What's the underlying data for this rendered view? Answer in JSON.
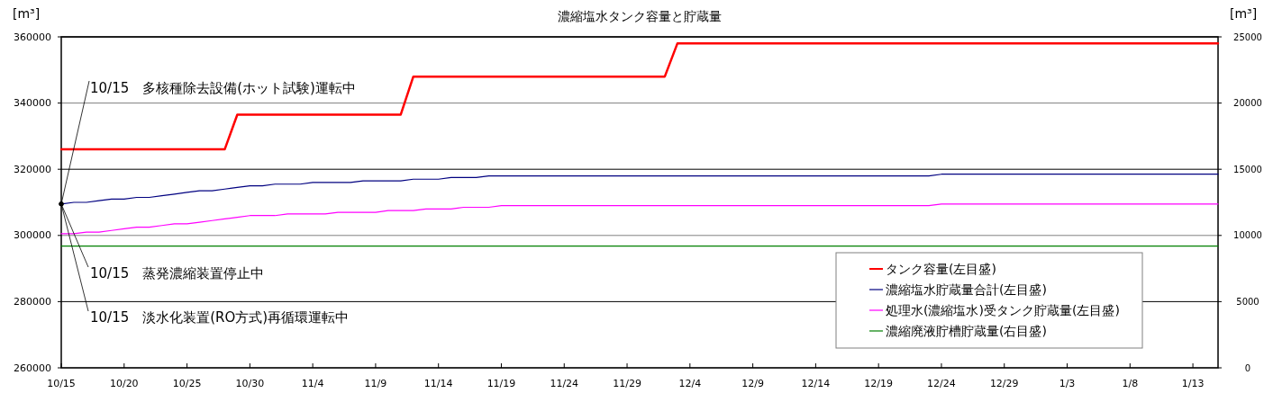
{
  "chart_data": {
    "type": "line",
    "title": "濃縮塩水タンク容量と貯蔵量",
    "ylabel": "[m³]",
    "y2label": "[m³]",
    "categories": [
      "10/15",
      null,
      null,
      null,
      null,
      "10/20",
      null,
      null,
      null,
      null,
      "10/25",
      null,
      null,
      null,
      null,
      "10/30",
      null,
      null,
      null,
      null,
      "11/4",
      null,
      null,
      null,
      null,
      "11/9",
      null,
      null,
      null,
      null,
      "11/14",
      null,
      null,
      null,
      null,
      "11/19",
      null,
      null,
      null,
      null,
      "11/24",
      null,
      null,
      null,
      null,
      "11/29",
      null,
      null,
      null,
      null,
      "12/4",
      null,
      null,
      null,
      null,
      "12/9",
      null,
      null,
      null,
      null,
      "12/14",
      null,
      null,
      null,
      null,
      "12/19",
      null,
      null,
      null,
      null,
      "12/24",
      null,
      null,
      null,
      null,
      "12/29",
      null,
      null,
      null,
      null,
      "1/3",
      null,
      null,
      null,
      null,
      "1/8",
      null,
      null,
      null,
      null,
      "1/13",
      null,
      null
    ],
    "ylim": [
      260000,
      360000
    ],
    "yticks": [
      260000,
      280000,
      300000,
      320000,
      340000,
      360000
    ],
    "y2lim": [
      0,
      25000
    ],
    "y2ticks": [
      0,
      5000,
      10000,
      15000,
      20000,
      25000
    ],
    "grid": "y",
    "legend": "bottom right",
    "series": [
      {
        "name": "タンク容量(左目盛)",
        "color": "#ff0000",
        "values": [
          326000,
          326000,
          326000,
          326000,
          326000,
          326000,
          326000,
          326000,
          326000,
          326000,
          326000,
          326000,
          326000,
          326000,
          336500,
          336500,
          336500,
          336500,
          336500,
          336500,
          336500,
          336500,
          336500,
          336500,
          336500,
          336500,
          336500,
          336500,
          348000,
          348000,
          348000,
          348000,
          348000,
          348000,
          348000,
          348000,
          348000,
          348000,
          348000,
          348000,
          348000,
          348000,
          348000,
          348000,
          348000,
          348000,
          348000,
          348000,
          348000,
          358000,
          358000,
          358000,
          358000,
          358000,
          358000,
          358000,
          358000,
          358000,
          358000,
          358000,
          358000,
          358000,
          358000,
          358000,
          358000,
          358000,
          358000,
          358000,
          358000,
          358000,
          358000,
          358000,
          358000,
          358000,
          358000,
          358000,
          358000,
          358000,
          358000,
          358000,
          358000,
          358000,
          358000,
          358000,
          358000,
          358000,
          358000,
          358000,
          358000,
          358000,
          358000,
          358000,
          358000
        ]
      },
      {
        "name": "濃縮塩水貯蔵量合計(左目盛)",
        "color": "#000080",
        "values": [
          309500,
          310000,
          310000,
          310500,
          311000,
          311000,
          311500,
          311500,
          312000,
          312500,
          313000,
          313500,
          313500,
          314000,
          314500,
          315000,
          315000,
          315500,
          315500,
          315500,
          316000,
          316000,
          316000,
          316000,
          316500,
          316500,
          316500,
          316500,
          317000,
          317000,
          317000,
          317500,
          317500,
          317500,
          318000,
          318000,
          318000,
          318000,
          318000,
          318000,
          318000,
          318000,
          318000,
          318000,
          318000,
          318000,
          318000,
          318000,
          318000,
          318000,
          318000,
          318000,
          318000,
          318000,
          318000,
          318000,
          318000,
          318000,
          318000,
          318000,
          318000,
          318000,
          318000,
          318000,
          318000,
          318000,
          318000,
          318000,
          318000,
          318000,
          318500,
          318500,
          318500,
          318500,
          318500,
          318500,
          318500,
          318500,
          318500,
          318500,
          318500,
          318500,
          318500,
          318500,
          318500,
          318500,
          318500,
          318500,
          318500,
          318500,
          318500,
          318500,
          318500
        ]
      },
      {
        "name": "処理水(濃縮塩水)受タンク貯蔵量(左目盛)",
        "color": "#ff00ff",
        "values": [
          300500,
          300500,
          301000,
          301000,
          301500,
          302000,
          302500,
          302500,
          303000,
          303500,
          303500,
          304000,
          304500,
          305000,
          305500,
          306000,
          306000,
          306000,
          306500,
          306500,
          306500,
          306500,
          307000,
          307000,
          307000,
          307000,
          307500,
          307500,
          307500,
          308000,
          308000,
          308000,
          308500,
          308500,
          308500,
          309000,
          309000,
          309000,
          309000,
          309000,
          309000,
          309000,
          309000,
          309000,
          309000,
          309000,
          309000,
          309000,
          309000,
          309000,
          309000,
          309000,
          309000,
          309000,
          309000,
          309000,
          309000,
          309000,
          309000,
          309000,
          309000,
          309000,
          309000,
          309000,
          309000,
          309000,
          309000,
          309000,
          309000,
          309000,
          309500,
          309500,
          309500,
          309500,
          309500,
          309500,
          309500,
          309500,
          309500,
          309500,
          309500,
          309500,
          309500,
          309500,
          309500,
          309500,
          309500,
          309500,
          309500,
          309500,
          309500,
          309500,
          309500
        ]
      },
      {
        "name": "濃縮廃液貯槽貯蔵量(右目盛)",
        "color": "#008000",
        "axis": "y2",
        "values": [
          9200,
          9200,
          9200,
          9200,
          9200,
          9200,
          9200,
          9200,
          9200,
          9200,
          9200,
          9200,
          9200,
          9200,
          9200,
          9200,
          9200,
          9200,
          9200,
          9200,
          9200,
          9200,
          9200,
          9200,
          9200,
          9200,
          9200,
          9200,
          9200,
          9200,
          9200,
          9200,
          9200,
          9200,
          9200,
          9200,
          9200,
          9200,
          9200,
          9200,
          9200,
          9200,
          9200,
          9200,
          9200,
          9200,
          9200,
          9200,
          9200,
          9200,
          9200,
          9200,
          9200,
          9200,
          9200,
          9200,
          9200,
          9200,
          9200,
          9200,
          9200,
          9200,
          9200,
          9200,
          9200,
          9200,
          9200,
          9200,
          9200,
          9200,
          9200,
          9200,
          9200,
          9200,
          9200,
          9200,
          9200,
          9200,
          9200,
          9200,
          9200,
          9200,
          9200,
          9200,
          9200,
          9200,
          9200,
          9200,
          9200,
          9200,
          9200,
          9200,
          9200
        ]
      }
    ],
    "annotations": [
      {
        "text": "10/15　多核種除去設備(ホット試験)運転中",
        "x": "10/15",
        "y": 309500
      },
      {
        "text": "10/15　蒸発濃縮装置停止中",
        "x": "10/15",
        "y": 309500
      },
      {
        "text": "10/15　淡水化装置(RO方式)再循環運転中",
        "x": "10/15",
        "y": 309500
      }
    ]
  }
}
